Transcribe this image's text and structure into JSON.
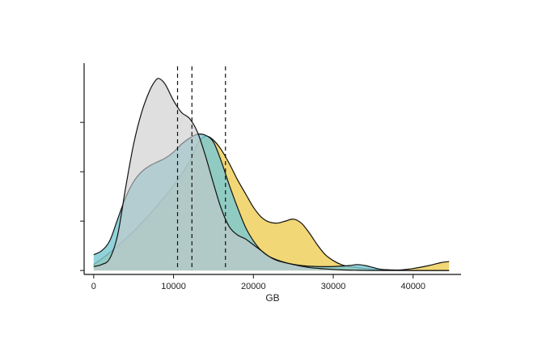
{
  "chart_data": {
    "type": "area",
    "title": "",
    "xlabel": "GB",
    "ylabel": "",
    "xlim": [
      -1200,
      46000
    ],
    "ylim": [
      -0.02,
      1.05
    ],
    "xticks": [
      0,
      10000,
      20000,
      30000,
      40000
    ],
    "xtick_labels": [
      "0",
      "10000",
      "20000",
      "30000",
      "40000"
    ],
    "yticks": [
      0,
      0.25,
      0.5,
      0.75
    ],
    "ytick_labels": [
      "",
      "",
      "",
      ""
    ],
    "grid": false,
    "legend": "none",
    "series": [
      {
        "color": "#f0d56e",
        "opacity": 0.95,
        "points": [
          [
            0,
            0.03
          ],
          [
            2000,
            0.09
          ],
          [
            4000,
            0.16
          ],
          [
            6000,
            0.24
          ],
          [
            8000,
            0.33
          ],
          [
            10000,
            0.43
          ],
          [
            12000,
            0.55
          ],
          [
            13000,
            0.64
          ],
          [
            14000,
            0.68
          ],
          [
            15000,
            0.66
          ],
          [
            16000,
            0.61
          ],
          [
            17000,
            0.54
          ],
          [
            18000,
            0.46
          ],
          [
            19000,
            0.39
          ],
          [
            20000,
            0.32
          ],
          [
            21000,
            0.27
          ],
          [
            22000,
            0.245
          ],
          [
            23000,
            0.24
          ],
          [
            24000,
            0.25
          ],
          [
            25000,
            0.26
          ],
          [
            26000,
            0.24
          ],
          [
            27000,
            0.19
          ],
          [
            28000,
            0.13
          ],
          [
            29000,
            0.08
          ],
          [
            30000,
            0.05
          ],
          [
            31000,
            0.03
          ],
          [
            32000,
            0.02
          ],
          [
            34000,
            0.01
          ],
          [
            36000,
            0.004
          ],
          [
            38000,
            0.002
          ],
          [
            40000,
            0.01
          ],
          [
            42000,
            0.025
          ],
          [
            43500,
            0.04
          ],
          [
            44500,
            0.045
          ]
        ]
      },
      {
        "color": "#7ac8d3",
        "opacity": 0.82,
        "points": [
          [
            0,
            0.08
          ],
          [
            1000,
            0.1
          ],
          [
            2000,
            0.15
          ],
          [
            3000,
            0.26
          ],
          [
            4000,
            0.37
          ],
          [
            5000,
            0.45
          ],
          [
            6000,
            0.5
          ],
          [
            7000,
            0.53
          ],
          [
            8000,
            0.55
          ],
          [
            9000,
            0.57
          ],
          [
            10000,
            0.6
          ],
          [
            11000,
            0.64
          ],
          [
            12000,
            0.67
          ],
          [
            13000,
            0.69
          ],
          [
            14000,
            0.685
          ],
          [
            15000,
            0.65
          ],
          [
            16000,
            0.55
          ],
          [
            17000,
            0.43
          ],
          [
            18000,
            0.32
          ],
          [
            19000,
            0.22
          ],
          [
            20000,
            0.15
          ],
          [
            21000,
            0.1
          ],
          [
            22000,
            0.07
          ],
          [
            24000,
            0.04
          ],
          [
            26000,
            0.025
          ],
          [
            28000,
            0.02
          ],
          [
            30000,
            0.02
          ],
          [
            32000,
            0.025
          ],
          [
            33000,
            0.03
          ],
          [
            34000,
            0.025
          ],
          [
            35000,
            0.015
          ],
          [
            36000,
            0.006
          ],
          [
            38000,
            0.002
          ],
          [
            40000,
            0.0
          ],
          [
            42000,
            0.0
          ],
          [
            44500,
            0.0
          ]
        ]
      },
      {
        "color": "#c9c9c9",
        "opacity": 0.6,
        "points": [
          [
            0,
            0.02
          ],
          [
            1000,
            0.03
          ],
          [
            2000,
            0.06
          ],
          [
            3000,
            0.18
          ],
          [
            4000,
            0.42
          ],
          [
            5000,
            0.64
          ],
          [
            6000,
            0.8
          ],
          [
            7000,
            0.91
          ],
          [
            7800,
            0.965
          ],
          [
            8300,
            0.97
          ],
          [
            9000,
            0.94
          ],
          [
            10000,
            0.86
          ],
          [
            11000,
            0.8
          ],
          [
            12000,
            0.77
          ],
          [
            13000,
            0.7
          ],
          [
            14000,
            0.58
          ],
          [
            15000,
            0.44
          ],
          [
            16000,
            0.31
          ],
          [
            17000,
            0.22
          ],
          [
            18000,
            0.18
          ],
          [
            19000,
            0.16
          ],
          [
            20000,
            0.13
          ],
          [
            21000,
            0.1
          ],
          [
            22000,
            0.07
          ],
          [
            23000,
            0.05
          ],
          [
            25000,
            0.03
          ],
          [
            27000,
            0.015
          ],
          [
            29000,
            0.008
          ],
          [
            31000,
            0.003
          ],
          [
            33000,
            0.001
          ],
          [
            35000,
            0.0
          ],
          [
            38000,
            0.0
          ],
          [
            40000,
            0.0
          ],
          [
            44500,
            0.0
          ]
        ]
      }
    ],
    "vlines": [
      10500,
      12300,
      16500
    ]
  }
}
